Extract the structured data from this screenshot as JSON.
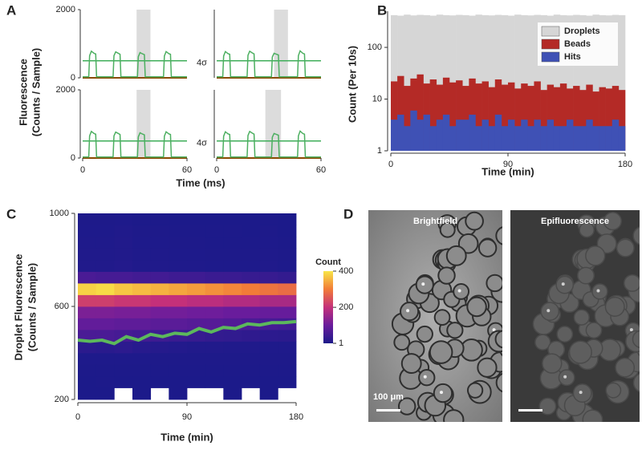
{
  "panel_labels": [
    "A",
    "B",
    "C",
    "D"
  ],
  "chart_data": [
    {
      "type": "line",
      "ylabel": [
        "Fluorescence",
        "(Counts / Sample)"
      ],
      "xlabel": "Time (ms)",
      "color": "#4caf60",
      "threshold_color": "#3fae5a",
      "x": [
        0,
        3.5,
        4,
        5,
        6.5,
        7.5,
        8,
        17.5,
        18,
        19,
        20.5,
        21.5,
        22,
        31.5,
        32,
        33,
        34.5,
        35.5,
        36,
        46.5,
        47,
        48,
        49.5,
        50.5,
        51,
        60
      ],
      "subplots": [
        {
          "xlim": [
            0,
            60
          ],
          "ylim": [
            0,
            2000
          ],
          "yticks": [
            0,
            2000
          ],
          "highlight": [
            31,
            39
          ],
          "threshold": 500,
          "threshold_label": "4σ",
          "values": [
            30,
            30,
            650,
            780,
            720,
            700,
            30,
            30,
            650,
            760,
            720,
            690,
            30,
            30,
            620,
            740,
            700,
            680,
            30,
            30,
            640,
            770,
            710,
            690,
            30,
            30
          ]
        },
        {
          "xlim": [
            0,
            60
          ],
          "ylim": [
            0,
            2000
          ],
          "highlight": [
            33,
            41
          ],
          "threshold": 500,
          "values": [
            30,
            30,
            640,
            770,
            710,
            690,
            30,
            30,
            660,
            780,
            730,
            700,
            30,
            30,
            610,
            720,
            690,
            670,
            30,
            30,
            650,
            790,
            720,
            700,
            30,
            30
          ]
        },
        {
          "xlim": [
            0,
            60
          ],
          "ylim": [
            0,
            2000
          ],
          "yticks": [
            0,
            2000
          ],
          "xticks": [
            0,
            60
          ],
          "highlight": [
            31,
            39
          ],
          "threshold": 500,
          "threshold_label": "4σ",
          "values": [
            30,
            30,
            650,
            780,
            720,
            700,
            30,
            30,
            650,
            760,
            720,
            690,
            30,
            30,
            620,
            740,
            700,
            680,
            30,
            30,
            640,
            770,
            710,
            690,
            30,
            30
          ]
        },
        {
          "xlim": [
            0,
            60
          ],
          "ylim": [
            0,
            2000
          ],
          "xticks": [
            0,
            60
          ],
          "highlight": [
            28,
            37
          ],
          "threshold": 500,
          "values": [
            30,
            30,
            640,
            770,
            710,
            690,
            30,
            30,
            660,
            780,
            730,
            700,
            30,
            30,
            610,
            720,
            690,
            670,
            30,
            30,
            650,
            790,
            720,
            700,
            30,
            30
          ]
        }
      ]
    },
    {
      "type": "bar",
      "ylabel": "Count (Per 10s)",
      "xlabel": "Time (min)",
      "log_y": true,
      "legend": "upper right",
      "x": [
        0,
        5,
        10,
        15,
        20,
        25,
        30,
        35,
        40,
        45,
        50,
        55,
        60,
        65,
        70,
        75,
        80,
        85,
        90,
        95,
        100,
        105,
        110,
        115,
        120,
        125,
        130,
        135,
        140,
        145,
        150,
        155,
        160,
        165,
        170,
        175
      ],
      "xlim": [
        0,
        180
      ],
      "ylim": [
        1,
        500
      ],
      "xticks": [
        0,
        90,
        180
      ],
      "yticks": [
        1,
        10,
        100
      ],
      "series": [
        {
          "name": "Droplets",
          "color": "#d6d6d6",
          "values": [
            420,
            410,
            430,
            415,
            425,
            420,
            410,
            430,
            420,
            415,
            425,
            420,
            410,
            430,
            420,
            415,
            425,
            420,
            410,
            430,
            420,
            415,
            425,
            420,
            410,
            430,
            420,
            415,
            425,
            420,
            410,
            430,
            420,
            415,
            425,
            420
          ]
        },
        {
          "name": "Beads",
          "color": "#b42a26",
          "values": [
            22,
            28,
            18,
            25,
            30,
            20,
            24,
            19,
            26,
            21,
            23,
            18,
            25,
            20,
            22,
            17,
            24,
            19,
            21,
            16,
            20,
            18,
            22,
            15,
            19,
            17,
            20,
            16,
            18,
            15,
            19,
            14,
            17,
            16,
            18,
            15
          ]
        },
        {
          "name": "Hits",
          "color": "#3f51b5",
          "values": [
            4,
            5,
            3,
            6,
            4,
            5,
            3,
            4,
            5,
            3,
            4,
            4,
            5,
            3,
            4,
            3,
            5,
            3,
            4,
            3,
            4,
            3,
            4,
            3,
            4,
            3,
            3,
            4,
            3,
            3,
            4,
            3,
            3,
            3,
            4,
            3
          ]
        }
      ]
    },
    {
      "type": "heatmap",
      "ylabel": [
        "Droplet Fluorescence",
        "(Counts / Sample)"
      ],
      "xlabel": "Time (min)",
      "xlim": [
        0,
        180
      ],
      "ylim": [
        200,
        1000
      ],
      "xticks": [
        0,
        90,
        180
      ],
      "yticks": [
        200,
        600,
        1000
      ],
      "x_bins": [
        0,
        15,
        30,
        45,
        60,
        75,
        90,
        105,
        120,
        135,
        150,
        165,
        180
      ],
      "y_bins": [
        200,
        250,
        300,
        350,
        400,
        450,
        500,
        550,
        600,
        650,
        700,
        750,
        800,
        850,
        900,
        950,
        1000
      ],
      "counts": [
        [
          1,
          1,
          0,
          1,
          0,
          1,
          0,
          0,
          1,
          0,
          1,
          0
        ],
        [
          1,
          2,
          1,
          1,
          1,
          1,
          1,
          1,
          1,
          1,
          1,
          1
        ],
        [
          2,
          2,
          2,
          2,
          2,
          2,
          2,
          2,
          2,
          2,
          2,
          2
        ],
        [
          4,
          4,
          4,
          4,
          3,
          3,
          3,
          3,
          3,
          3,
          3,
          3
        ],
        [
          20,
          18,
          22,
          15,
          12,
          10,
          8,
          8,
          6,
          6,
          5,
          5
        ],
        [
          60,
          60,
          55,
          50,
          45,
          40,
          35,
          30,
          28,
          25,
          22,
          20
        ],
        [
          90,
          90,
          85,
          85,
          80,
          80,
          75,
          75,
          70,
          60,
          55,
          50
        ],
        [
          120,
          120,
          115,
          115,
          110,
          110,
          105,
          105,
          100,
          100,
          95,
          95
        ],
        [
          220,
          220,
          210,
          210,
          200,
          200,
          190,
          190,
          180,
          180,
          170,
          170
        ],
        [
          380,
          390,
          370,
          360,
          350,
          340,
          330,
          320,
          310,
          300,
          290,
          280
        ],
        [
          60,
          55,
          55,
          50,
          50,
          45,
          45,
          40,
          40,
          35,
          35,
          30
        ],
        [
          8,
          8,
          10,
          6,
          6,
          5,
          5,
          4,
          4,
          4,
          6,
          4
        ],
        [
          6,
          6,
          8,
          5,
          5,
          4,
          4,
          3,
          3,
          3,
          5,
          3
        ],
        [
          5,
          5,
          7,
          4,
          4,
          3,
          3,
          2,
          2,
          2,
          4,
          2
        ],
        [
          4,
          4,
          6,
          3,
          3,
          2,
          2,
          2,
          2,
          1,
          3,
          1
        ],
        [
          3,
          3,
          4,
          2,
          2,
          1,
          1,
          1,
          1,
          1,
          2,
          1
        ]
      ],
      "colorbar": {
        "label": "Count",
        "lim": [
          1,
          400
        ],
        "ticks": [
          1,
          200,
          400
        ]
      },
      "line": {
        "color": "#5cb85c",
        "x": [
          0,
          10,
          20,
          30,
          40,
          50,
          60,
          70,
          80,
          90,
          100,
          110,
          120,
          130,
          140,
          150,
          160,
          170,
          180
        ],
        "values": [
          455,
          450,
          455,
          440,
          470,
          455,
          480,
          470,
          485,
          480,
          505,
          490,
          510,
          505,
          525,
          520,
          530,
          530,
          535
        ]
      }
    }
  ],
  "images": [
    {
      "label": "Brightfield",
      "scale_bar": "100 μm"
    },
    {
      "label": "Epifluorescence"
    }
  ]
}
